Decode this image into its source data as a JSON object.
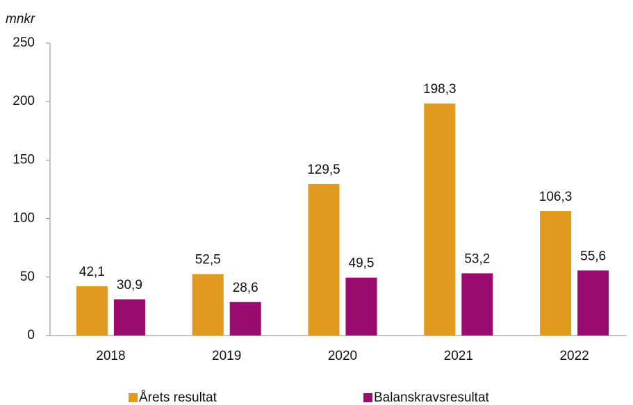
{
  "chart_data": {
    "type": "bar",
    "y_label": "mnkr",
    "categories": [
      "2018",
      "2019",
      "2020",
      "2021",
      "2022"
    ],
    "series": [
      {
        "name": "Årets resultat",
        "color": "#e09a1e",
        "values": [
          42.1,
          52.5,
          129.5,
          198.3,
          106.3
        ],
        "value_labels": [
          "42,1",
          "52,5",
          "129,5",
          "198,3",
          "106,3"
        ]
      },
      {
        "name": "Balanskravsresultat",
        "color": "#9b0a6e",
        "values": [
          30.9,
          28.6,
          49.5,
          53.2,
          55.6
        ],
        "value_labels": [
          "30,9",
          "28,6",
          "49,5",
          "53,2",
          "55,6"
        ]
      }
    ],
    "ylim": [
      0,
      250
    ],
    "yticks": [
      0,
      50,
      100,
      150,
      200,
      250
    ],
    "grid": false,
    "legend": "bottom"
  }
}
